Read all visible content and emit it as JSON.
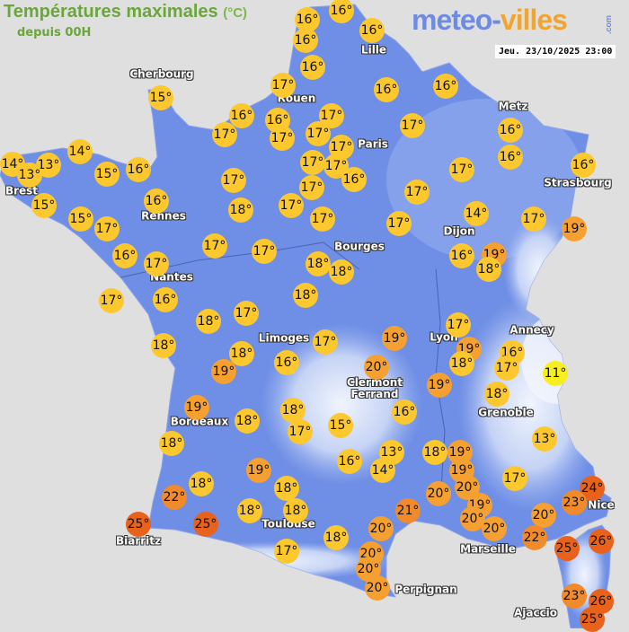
{
  "header": {
    "title": "Températures maximales",
    "unit": "(°C)",
    "subtitle": "depuis 00H"
  },
  "logo": {
    "part1": "meteo-",
    "part2": "villes",
    "tld": ".com"
  },
  "timestamp": "Jeu. 23/10/2025 23:00",
  "colors": {
    "land": "#6f8fe6",
    "sea": "#e0dfdf",
    "t11": "#f7ee22",
    "t13_18": "#fcc82e",
    "t19_20": "#f5a030",
    "t21_23": "#f08a2a",
    "t24_26": "#e8621c",
    "title": "#6aa63a"
  },
  "cities": [
    "Cherbourg",
    "Rouen",
    "Lille",
    "Paris",
    "Metz",
    "Strasbourg",
    "Brest",
    "Rennes",
    "Dijon",
    "Bourges",
    "Nantes",
    "Limoges",
    "Lyon",
    "Annecy",
    "Clermont\nFerrand",
    "Grenoble",
    "Bordeaux",
    "Toulouse",
    "Biarritz",
    "Nice",
    "Marseille",
    "Perpignan",
    "Ajaccio"
  ],
  "temperatures": [
    16,
    16,
    16,
    16,
    16,
    17,
    16,
    16,
    15,
    16,
    16,
    17,
    17,
    17,
    17,
    17,
    17,
    16,
    14,
    14,
    13,
    13,
    15,
    16,
    17,
    17,
    16,
    17,
    16,
    16,
    17,
    17,
    15,
    16,
    15,
    17,
    18,
    17,
    17,
    17,
    17,
    14,
    17,
    19,
    16,
    17,
    17,
    17,
    18,
    18,
    16,
    19,
    18,
    17,
    16,
    18,
    18,
    17,
    18,
    18,
    19,
    16,
    17,
    19,
    17,
    19,
    18,
    16,
    17,
    11,
    20,
    19,
    18,
    19,
    18,
    18,
    17,
    16,
    15,
    18,
    13,
    13,
    19,
    16,
    14,
    18,
    19,
    19,
    18,
    18,
    17,
    24,
    23,
    22,
    20,
    20,
    21,
    19,
    20,
    18,
    18,
    20,
    20,
    25,
    25,
    20,
    18,
    22,
    25,
    26,
    17,
    20,
    20,
    20,
    23,
    26,
    25
  ]
}
